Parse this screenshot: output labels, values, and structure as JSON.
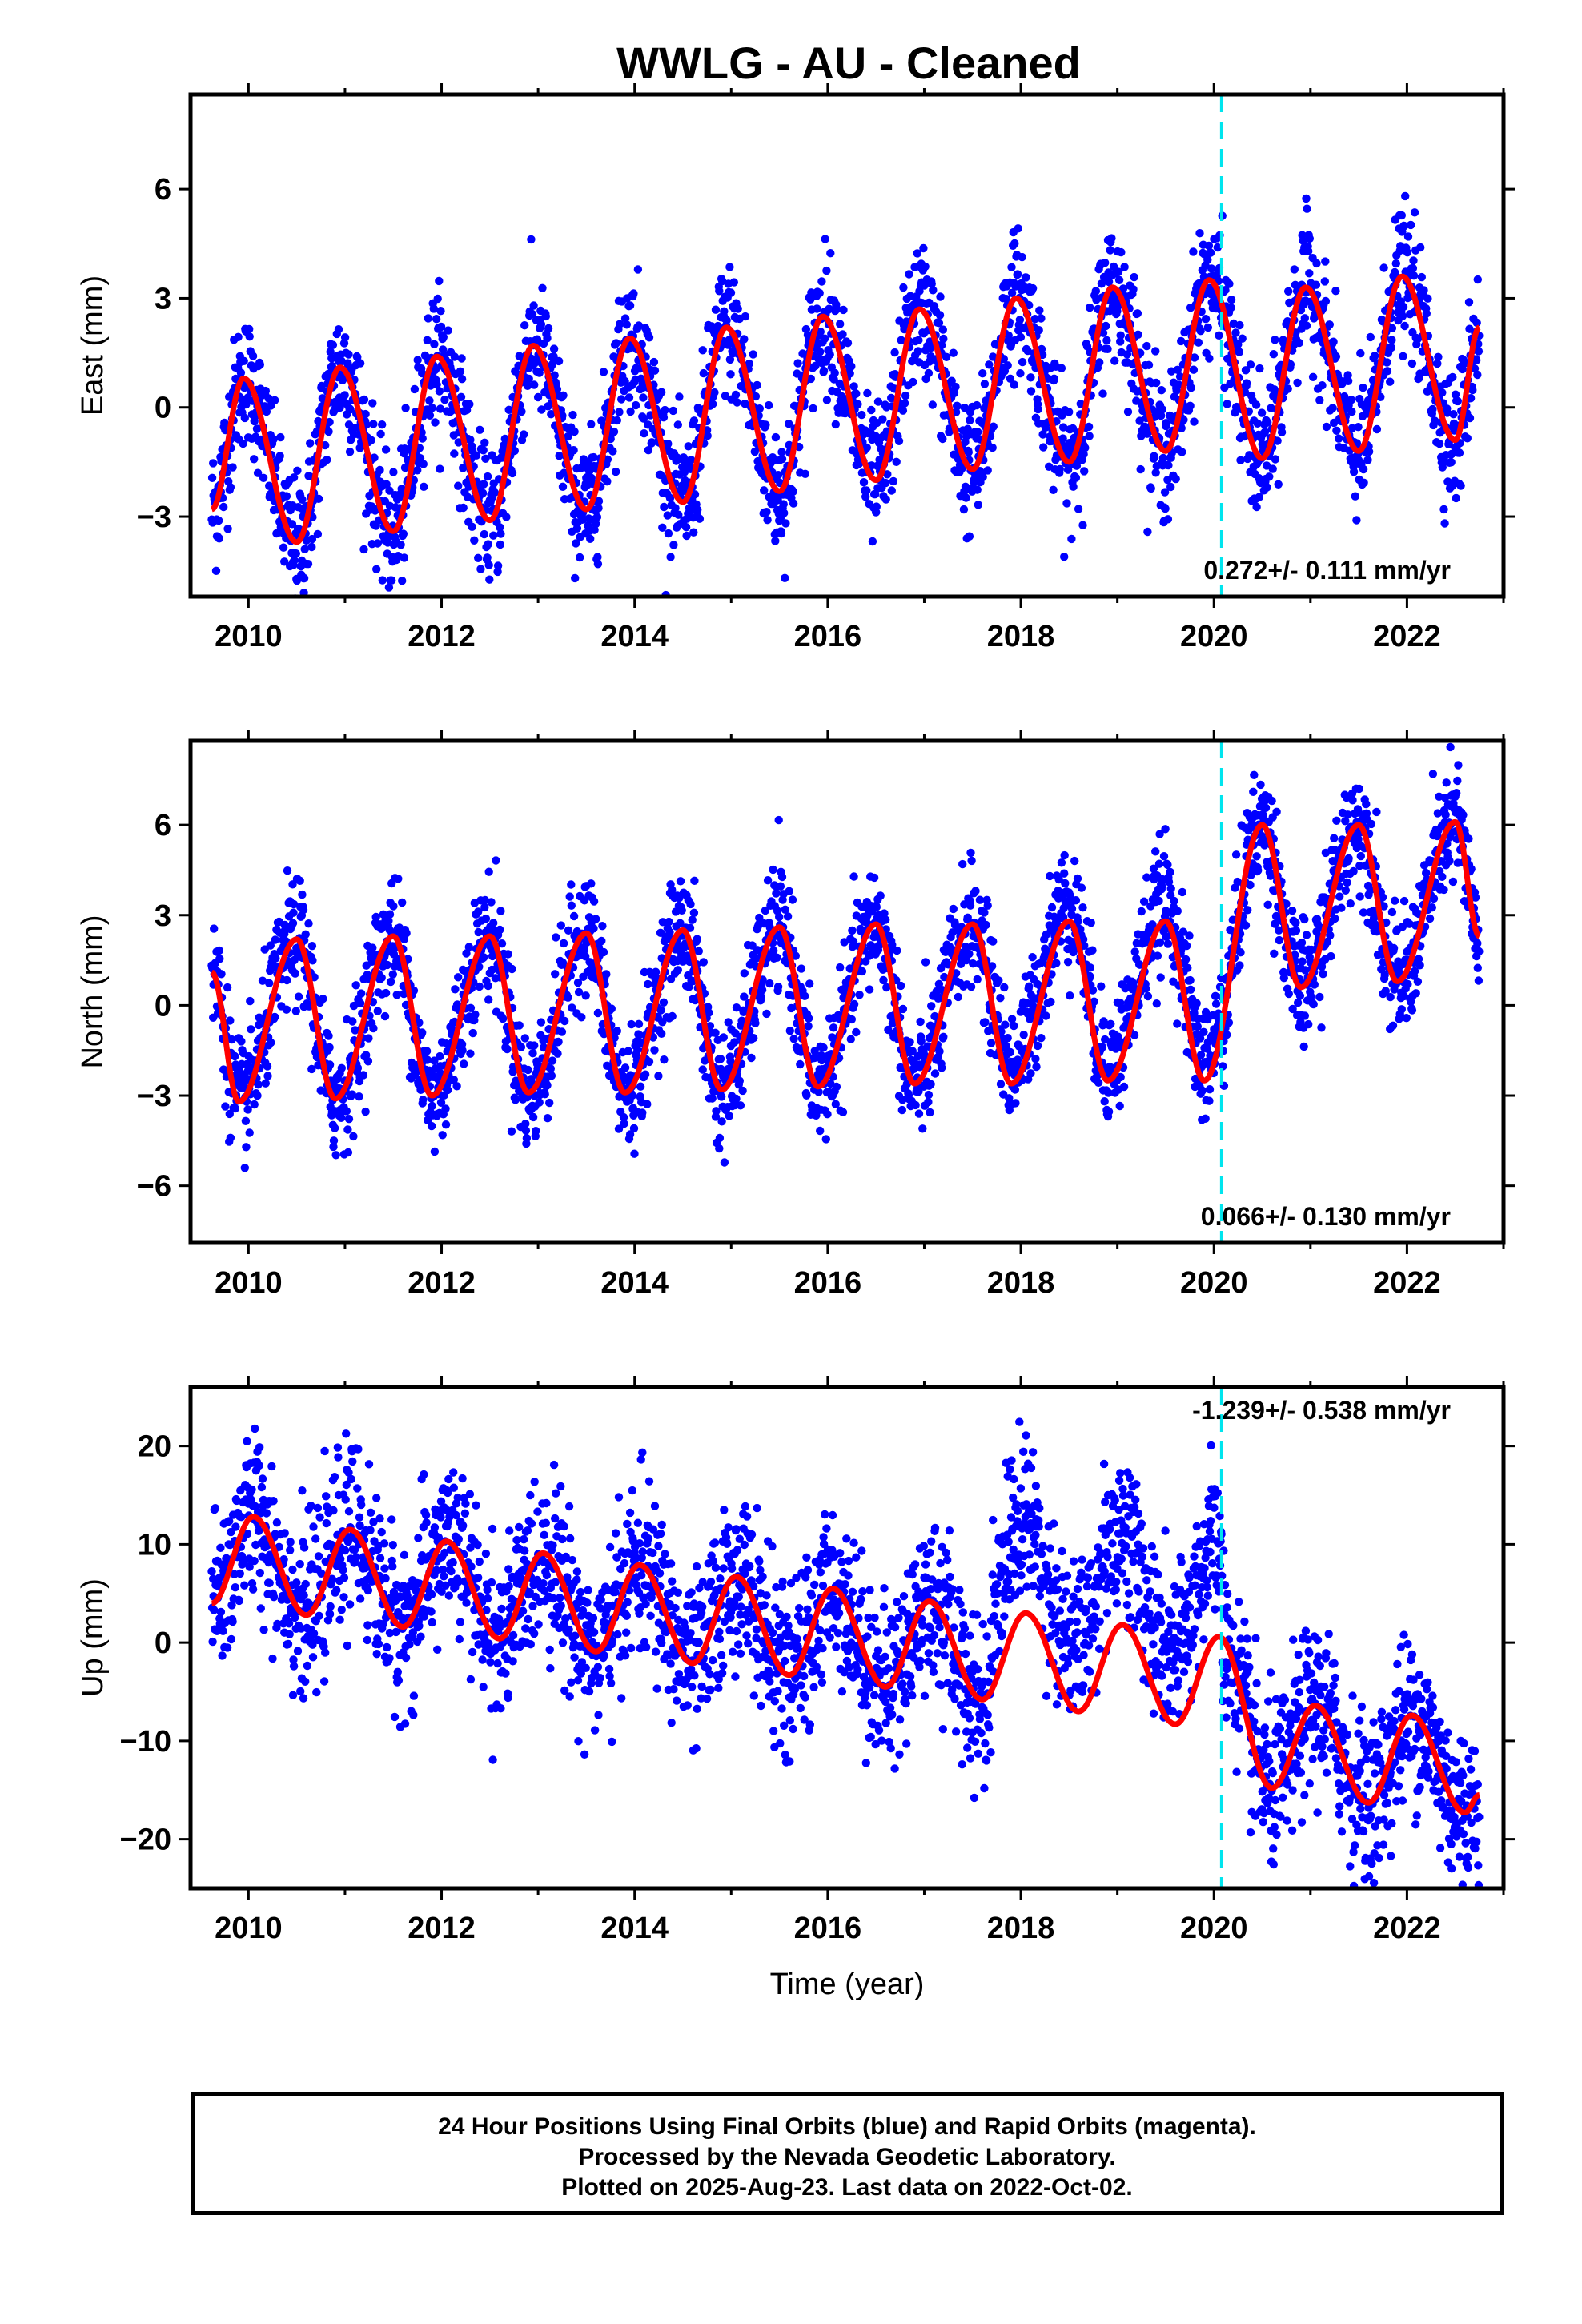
{
  "title": "WWLG  - AU - Cleaned",
  "xlabel": "Time (year)",
  "footer": {
    "line1": "24 Hour Positions Using Final Orbits (blue) and Rapid Orbits (magenta).",
    "line2": "Processed by the Nevada Geodetic Laboratory.",
    "line3": "Plotted on 2025-Aug-23. Last data on 2022-Oct-02."
  },
  "colors": {
    "data": "#0000ff",
    "model": "#ff0000",
    "event_line": "#00e5ee"
  },
  "chart_data": [
    {
      "type": "scatter",
      "component": "east",
      "ylabel": "East (mm)",
      "xlim": [
        2009.4,
        2023.0
      ],
      "ylim": [
        -5.2,
        8.6
      ],
      "xticks": [
        2010,
        2012,
        2014,
        2016,
        2018,
        2020,
        2022
      ],
      "yticks": [
        -3,
        0,
        3,
        6
      ],
      "rate_label": "0.272+/- 0.111 mm/yr",
      "event_line_x": 2020.08,
      "data_range": [
        2009.62,
        2022.75
      ],
      "model": {
        "annual_peaks": [
          [
            2009.95,
            0.8
          ],
          [
            2010.95,
            1.1
          ],
          [
            2011.95,
            1.4
          ],
          [
            2012.95,
            1.7
          ],
          [
            2013.95,
            1.9
          ],
          [
            2014.95,
            2.2
          ],
          [
            2015.95,
            2.5
          ],
          [
            2016.95,
            2.7
          ],
          [
            2017.95,
            3.0
          ],
          [
            2018.95,
            3.3
          ],
          [
            2019.95,
            3.5
          ],
          [
            2020.95,
            3.3
          ],
          [
            2021.95,
            3.6
          ]
        ],
        "annual_troughs": [
          [
            2010.5,
            -3.7
          ],
          [
            2011.5,
            -3.4
          ],
          [
            2012.5,
            -3.1
          ],
          [
            2013.5,
            -2.8
          ],
          [
            2014.5,
            -2.6
          ],
          [
            2015.5,
            -2.3
          ],
          [
            2016.5,
            -2.0
          ],
          [
            2017.5,
            -1.7
          ],
          [
            2018.5,
            -1.5
          ],
          [
            2019.5,
            -1.2
          ],
          [
            2020.5,
            -1.4
          ],
          [
            2021.5,
            -1.2
          ],
          [
            2022.5,
            -0.9
          ]
        ],
        "start": [
          2009.62,
          -2.8
        ],
        "end": [
          2022.75,
          2.2
        ]
      },
      "scatter_sigma": 0.9
    },
    {
      "type": "scatter",
      "component": "north",
      "ylabel": "North (mm)",
      "xlim": [
        2009.4,
        2023.0
      ],
      "ylim": [
        -7.9,
        8.8
      ],
      "xticks": [
        2010,
        2012,
        2014,
        2016,
        2018,
        2020,
        2022
      ],
      "yticks": [
        -6,
        -3,
        0,
        3,
        6
      ],
      "rate_label": "0.066+/- 0.130 mm/yr",
      "event_line_x": 2020.08,
      "data_range": [
        2009.62,
        2022.75
      ],
      "model": {
        "annual_peaks": [
          [
            2010.5,
            2.2
          ],
          [
            2011.5,
            2.3
          ],
          [
            2012.5,
            2.3
          ],
          [
            2013.5,
            2.4
          ],
          [
            2014.5,
            2.5
          ],
          [
            2015.5,
            2.6
          ],
          [
            2016.5,
            2.7
          ],
          [
            2017.5,
            2.7
          ],
          [
            2018.5,
            2.8
          ],
          [
            2019.5,
            2.8
          ],
          [
            2020.5,
            6.0
          ],
          [
            2021.5,
            6.0
          ],
          [
            2022.5,
            6.1
          ]
        ],
        "annual_troughs": [
          [
            2009.9,
            -3.2
          ],
          [
            2010.9,
            -3.1
          ],
          [
            2011.9,
            -3.0
          ],
          [
            2012.9,
            -2.9
          ],
          [
            2013.9,
            -2.9
          ],
          [
            2014.9,
            -2.8
          ],
          [
            2015.9,
            -2.7
          ],
          [
            2016.9,
            -2.6
          ],
          [
            2017.9,
            -2.6
          ],
          [
            2018.9,
            -2.5
          ],
          [
            2019.9,
            -2.5
          ],
          [
            2020.9,
            0.6
          ],
          [
            2021.9,
            0.8
          ]
        ],
        "start": [
          2009.62,
          1.1
        ],
        "end": [
          2022.75,
          2.3
        ]
      },
      "scatter_sigma": 1.0
    },
    {
      "type": "scatter",
      "component": "up",
      "ylabel": "Up (mm)",
      "xlim": [
        2009.4,
        2023.0
      ],
      "ylim": [
        -25,
        26
      ],
      "xticks": [
        2010,
        2012,
        2014,
        2016,
        2018,
        2020,
        2022
      ],
      "yticks": [
        -20,
        -10,
        0,
        10,
        20
      ],
      "rate_label": "-1.239+/- 0.538 mm/yr",
      "event_line_x": 2020.08,
      "data_range": [
        2009.62,
        2022.75
      ],
      "model": {
        "annual_peaks": [
          [
            2010.05,
            12.8
          ],
          [
            2011.05,
            11.5
          ],
          [
            2012.05,
            10.3
          ],
          [
            2013.05,
            9.1
          ],
          [
            2014.05,
            7.9
          ],
          [
            2015.05,
            6.7
          ],
          [
            2016.05,
            5.5
          ],
          [
            2017.05,
            4.2
          ],
          [
            2018.05,
            3.0
          ],
          [
            2019.05,
            1.8
          ],
          [
            2020.05,
            0.6
          ],
          [
            2021.05,
            -6.4
          ],
          [
            2022.05,
            -7.4
          ]
        ],
        "annual_troughs": [
          [
            2010.6,
            2.8
          ],
          [
            2011.6,
            1.6
          ],
          [
            2012.6,
            0.4
          ],
          [
            2013.6,
            -0.9
          ],
          [
            2014.6,
            -2.1
          ],
          [
            2015.6,
            -3.3
          ],
          [
            2016.6,
            -4.5
          ],
          [
            2017.6,
            -5.8
          ],
          [
            2018.6,
            -7.0
          ],
          [
            2019.6,
            -8.3
          ],
          [
            2020.6,
            -14.8
          ],
          [
            2021.6,
            -16.3
          ],
          [
            2022.6,
            -17.3
          ]
        ],
        "start": [
          2009.62,
          4.0
        ],
        "end": [
          2022.75,
          -15.5
        ]
      },
      "scatter_sigma": 4.2
    }
  ]
}
